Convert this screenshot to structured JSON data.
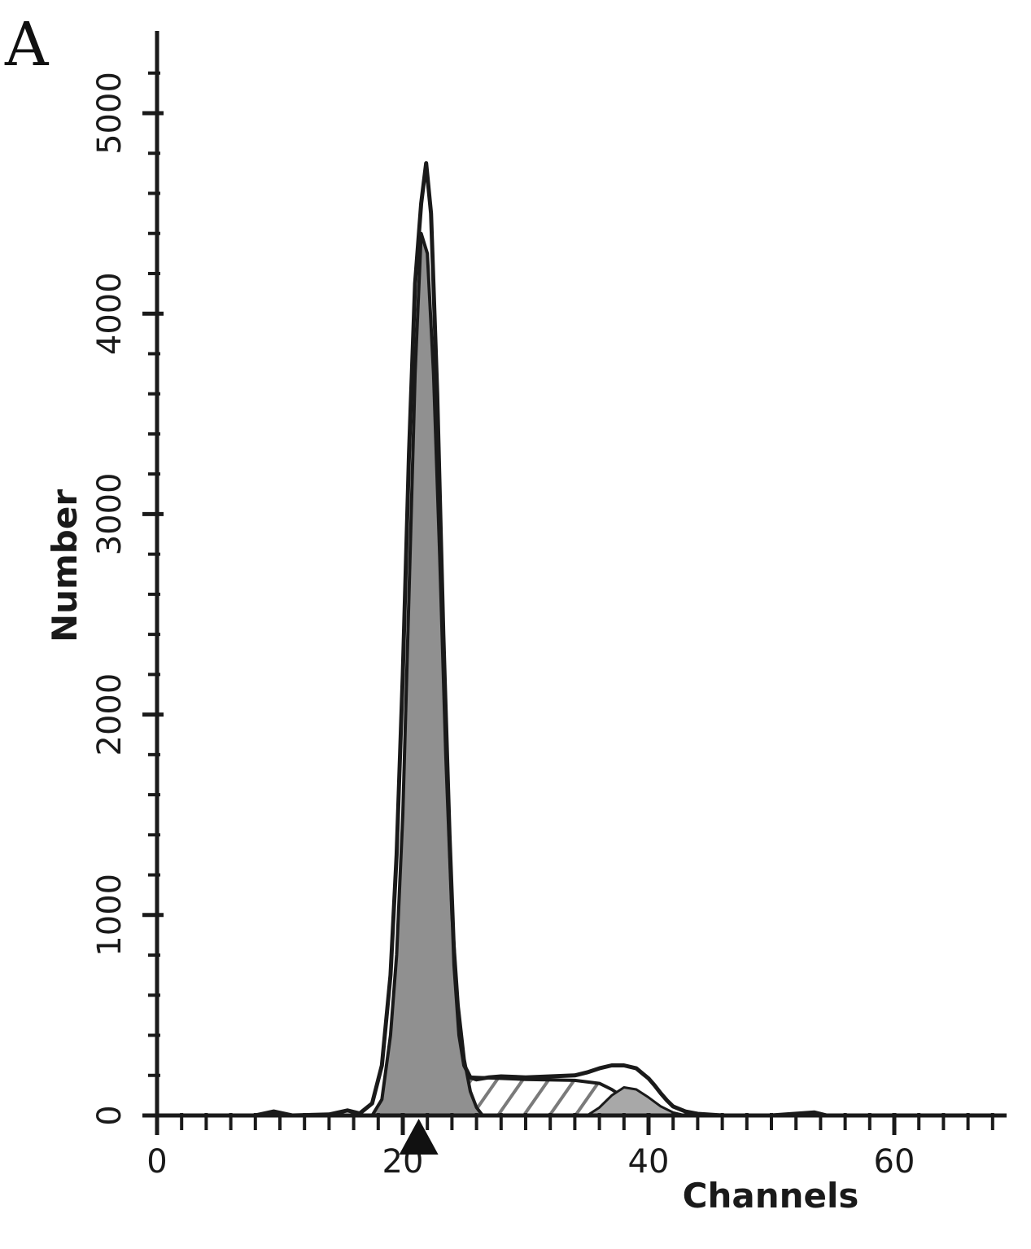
{
  "panel_label": "A",
  "chart_data": {
    "type": "area",
    "xlabel": "Channels",
    "ylabel": "Number",
    "xlim": [
      0,
      68
    ],
    "ylim": [
      0,
      5300
    ],
    "x_ticks": [
      0,
      20,
      40,
      60
    ],
    "x_tick_labels": [
      "0",
      "20",
      "40",
      "60"
    ],
    "x_minor_step": 2,
    "y_ticks": [
      0,
      1000,
      2000,
      3000,
      4000,
      5000
    ],
    "y_tick_labels": [
      "0",
      "1000",
      "2000",
      "3000",
      "4000",
      "5000"
    ],
    "y_minor_step": 200,
    "grid": false,
    "colors": {
      "g1_fill": "#909090",
      "g2m_fill": "#a8a8a8",
      "s_hatch": "#7a7a7a",
      "outline": "#1a1a1a",
      "marker": "#111111"
    },
    "marker_channel": 21.3,
    "series": [
      {
        "x": [
          0,
          8,
          9.5,
          11,
          14,
          15.5,
          16.5,
          17.5,
          18.3,
          19,
          19.5,
          20,
          20.5,
          21,
          21.5,
          21.9,
          22.3,
          22.8,
          23.3,
          23.8,
          24.2,
          24.6,
          25,
          25.5,
          26,
          27,
          28,
          30,
          32,
          34,
          35,
          36,
          37,
          38,
          39,
          39.5,
          40,
          40.5,
          41,
          41.5,
          42,
          43,
          44,
          46,
          50,
          53.5,
          54.5,
          60,
          68
        ],
        "y": [
          0,
          0,
          20,
          0,
          5,
          25,
          10,
          60,
          250,
          700,
          1300,
          2200,
          3300,
          4150,
          4550,
          4750,
          4500,
          3600,
          2400,
          1400,
          750,
          400,
          250,
          190,
          180,
          190,
          195,
          190,
          195,
          200,
          215,
          235,
          250,
          250,
          235,
          210,
          185,
          150,
          110,
          75,
          45,
          20,
          8,
          0,
          0,
          15,
          0,
          0,
          0
        ]
      },
      {
        "x": [
          17.5,
          18.3,
          19,
          19.5,
          20,
          20.5,
          21,
          21.5,
          22,
          22.5,
          23,
          23.5,
          24,
          24.5,
          25,
          25.5,
          26,
          26.5
        ],
        "y": [
          0,
          80,
          400,
          800,
          1500,
          2600,
          3700,
          4400,
          4300,
          3700,
          2800,
          1800,
          1000,
          550,
          280,
          120,
          40,
          0
        ]
      },
      {
        "x": [
          35,
          36,
          37,
          38,
          39,
          40,
          41,
          42,
          43
        ],
        "y": [
          0,
          40,
          100,
          140,
          130,
          90,
          45,
          15,
          0
        ]
      },
      {
        "x": [
          20.5,
          21.5,
          22.5,
          23.5,
          24.3,
          26,
          30,
          34,
          36,
          37,
          38,
          39,
          40,
          40.5,
          41,
          42
        ],
        "y": [
          0,
          60,
          130,
          175,
          195,
          190,
          180,
          175,
          160,
          130,
          90,
          55,
          25,
          15,
          5,
          0
        ]
      }
    ]
  }
}
